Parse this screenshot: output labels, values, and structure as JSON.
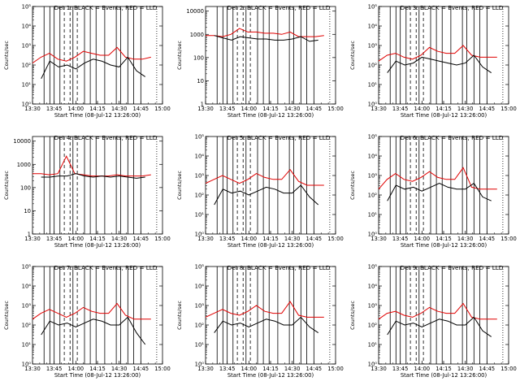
{
  "chart_data": {
    "type": "line",
    "x_tick_labels": [
      "13:30",
      "13:45",
      "14:00",
      "14:15",
      "14:30",
      "14:45",
      "15:00"
    ],
    "xlim": [
      "13:30",
      "15:00"
    ],
    "xlabel": "Start Time (08-Jul-12 13:26:00)",
    "ylabel": "Counts/sec",
    "y_scale": "log",
    "series_colors": {
      "events": "#000000",
      "lld": "#e00000"
    },
    "markers": {
      "solid_vertical": [
        "13:38",
        "13:42",
        "13:45",
        "13:49",
        "13:58",
        "14:06",
        "14:10",
        "14:14",
        "14:20",
        "14:28",
        "14:31",
        "14:36",
        "14:40",
        "14:45"
      ],
      "dashed_vertical": [
        "13:52",
        "13:56",
        "14:01"
      ],
      "dotted_vertical": [
        "14:56"
      ]
    },
    "panels": [
      {
        "title": "Det 1: BLACK = Events, RED = LLD",
        "yticks": [
          "10⁰",
          "10¹",
          "10²",
          "10³",
          "10⁴",
          "10⁵"
        ],
        "ylim_exp": [
          0,
          5
        ],
        "events": [
          1.3,
          2.2,
          1.9,
          2.0,
          1.8,
          2.1,
          2.3,
          2.2,
          2.0,
          1.9,
          2.4,
          1.7,
          1.4
        ],
        "lld": [
          2.1,
          2.4,
          2.6,
          2.3,
          2.2,
          2.4,
          2.7,
          2.6,
          2.5,
          2.5,
          2.9,
          2.4,
          2.3,
          2.3,
          2.4
        ]
      },
      {
        "title": "Det 2: BLACK = Events, RED = LLD",
        "yticks": [
          "1",
          "10",
          "100",
          "1000",
          "10000"
        ],
        "ylim_exp": [
          0,
          4.2
        ],
        "events": [
          2.95,
          2.85,
          2.75,
          2.9,
          2.85,
          2.8,
          2.8,
          2.75,
          2.75,
          2.8,
          2.9,
          2.7,
          2.75
        ],
        "lld": [
          2.95,
          2.95,
          2.9,
          3.0,
          3.25,
          3.1,
          3.1,
          3.05,
          3.05,
          3.0,
          3.1,
          2.9,
          2.9,
          2.9,
          2.95
        ]
      },
      {
        "title": "Det 3: BLACK = Events, RED = LLD",
        "yticks": [
          "10⁰",
          "10¹",
          "10²",
          "10³",
          "10⁴",
          "10⁵"
        ],
        "ylim_exp": [
          0,
          5
        ],
        "events": [
          1.6,
          2.2,
          2.0,
          2.1,
          2.4,
          2.3,
          2.2,
          2.1,
          2.0,
          2.1,
          2.5,
          1.9,
          1.6
        ],
        "lld": [
          2.2,
          2.5,
          2.6,
          2.4,
          2.3,
          2.5,
          2.9,
          2.7,
          2.6,
          2.6,
          3.0,
          2.5,
          2.4,
          2.4,
          2.4
        ]
      },
      {
        "title": "Det 4: BLACK = Events, RED = LLD",
        "yticks": [
          "1",
          "10",
          "100",
          "1000",
          "10000"
        ],
        "ylim_exp": [
          0,
          4.2
        ],
        "events": [
          2.45,
          2.45,
          2.5,
          2.5,
          2.6,
          2.5,
          2.45,
          2.5,
          2.45,
          2.5,
          2.45,
          2.4,
          2.45
        ],
        "lld": [
          2.6,
          2.6,
          2.55,
          2.6,
          3.35,
          2.6,
          2.55,
          2.5,
          2.5,
          2.5,
          2.55,
          2.5,
          2.5,
          2.5,
          2.55
        ]
      },
      {
        "title": "Det 5: BLACK = Events, RED = LLD",
        "yticks": [
          "10⁰",
          "10¹",
          "10²",
          "10³",
          "10⁴",
          "10⁵"
        ],
        "ylim_exp": [
          0,
          5
        ],
        "events": [
          1.5,
          2.3,
          2.1,
          2.2,
          2.0,
          2.2,
          2.4,
          2.3,
          2.1,
          2.1,
          2.5,
          1.9,
          1.5
        ],
        "lld": [
          2.6,
          2.8,
          3.0,
          2.8,
          2.6,
          2.8,
          3.1,
          2.9,
          2.8,
          2.8,
          3.3,
          2.7,
          2.5,
          2.5,
          2.5
        ]
      },
      {
        "title": "Det 6: BLACK = Events, RED = LLD",
        "yticks": [
          "10⁰",
          "10¹",
          "10²",
          "10³",
          "10⁴",
          "10⁵"
        ],
        "ylim_exp": [
          0,
          5
        ],
        "events": [
          1.7,
          2.5,
          2.3,
          2.4,
          2.2,
          2.4,
          2.6,
          2.4,
          2.3,
          2.3,
          2.6,
          1.9,
          1.7
        ],
        "lld": [
          2.3,
          2.8,
          3.1,
          2.8,
          2.7,
          2.9,
          3.2,
          2.9,
          2.8,
          2.8,
          3.4,
          2.4,
          2.3,
          2.3,
          2.3
        ]
      },
      {
        "title": "Det 7: BLACK = Events, RED = LLD",
        "yticks": [
          "10⁰",
          "10¹",
          "10²",
          "10³",
          "10⁴",
          "10⁵"
        ],
        "ylim_exp": [
          0,
          5
        ],
        "events": [
          1.5,
          2.2,
          2.0,
          2.1,
          1.9,
          2.1,
          2.3,
          2.2,
          2.0,
          2.0,
          2.4,
          1.6,
          1.0
        ],
        "lld": [
          2.3,
          2.6,
          2.8,
          2.6,
          2.4,
          2.6,
          2.9,
          2.7,
          2.6,
          2.6,
          3.1,
          2.5,
          2.3,
          2.3,
          2.3
        ]
      },
      {
        "title": "Det 8: BLACK = Events, RED = LLD",
        "yticks": [
          "10⁰",
          "10¹",
          "10²",
          "10³",
          "10⁴",
          "10⁵"
        ],
        "ylim_exp": [
          0,
          5
        ],
        "events": [
          1.6,
          2.2,
          2.0,
          2.1,
          1.9,
          2.1,
          2.3,
          2.2,
          2.0,
          2.0,
          2.4,
          1.9,
          1.6
        ],
        "lld": [
          2.4,
          2.6,
          2.8,
          2.6,
          2.5,
          2.7,
          3.0,
          2.7,
          2.6,
          2.6,
          3.2,
          2.5,
          2.4,
          2.4,
          2.4
        ]
      },
      {
        "title": "Det 9: BLACK = Events, RED = LLD",
        "yticks": [
          "10⁰",
          "10¹",
          "10²",
          "10³",
          "10⁴",
          "10⁵"
        ],
        "ylim_exp": [
          0,
          5
        ],
        "events": [
          1.5,
          2.2,
          2.0,
          2.1,
          1.9,
          2.1,
          2.3,
          2.2,
          2.0,
          2.0,
          2.4,
          1.7,
          1.4
        ],
        "lld": [
          2.3,
          2.6,
          2.7,
          2.5,
          2.4,
          2.6,
          2.9,
          2.7,
          2.6,
          2.6,
          3.1,
          2.4,
          2.3,
          2.3,
          2.3
        ]
      }
    ]
  }
}
